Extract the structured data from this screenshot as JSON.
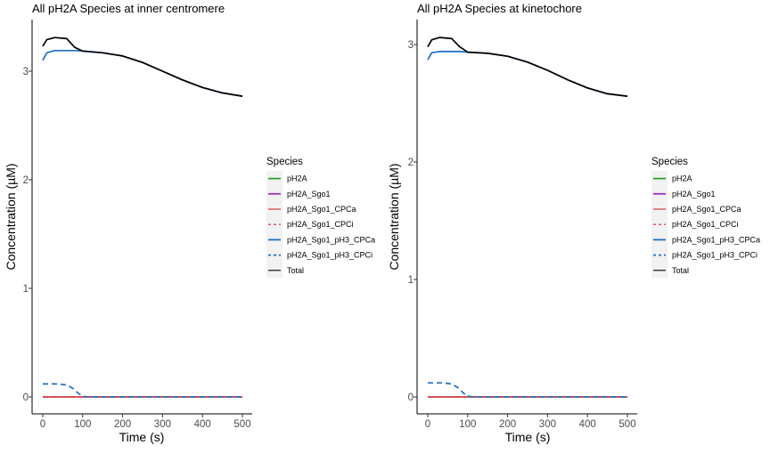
{
  "chart_data": [
    {
      "type": "line",
      "title": "All pH2A Species at inner centromere",
      "xlabel": "Time (s)",
      "ylabel": "Concentration (µM)",
      "xlim": [
        0,
        500
      ],
      "ylim": [
        0,
        3.3
      ],
      "x_ticks": [
        "0",
        "100",
        "200",
        "300",
        "400",
        "500"
      ],
      "y_ticks": [
        "0",
        "1",
        "2",
        "3"
      ],
      "legend_title": "Species",
      "legend_position": "right",
      "grid": false,
      "series": [
        {
          "name": "pH2A",
          "color": "#2ca02c",
          "dash": "solid",
          "x": [
            0,
            100,
            500
          ],
          "values": [
            0,
            0,
            0
          ]
        },
        {
          "name": "pH2A_Sgo1",
          "color": "#9b30b8",
          "dash": "solid",
          "x": [
            0,
            100,
            500
          ],
          "values": [
            0,
            0,
            0
          ]
        },
        {
          "name": "pH2A_Sgo1_CPCa",
          "color": "#d62728",
          "dash": "solid",
          "x": [
            0,
            100,
            500
          ],
          "values": [
            0,
            0,
            0
          ]
        },
        {
          "name": "pH2A_Sgo1_CPCi",
          "color": "#d62728",
          "dash": "dashed",
          "x": [
            0,
            100,
            500
          ],
          "values": [
            0,
            0,
            0
          ]
        },
        {
          "name": "pH2A_Sgo1_pH3_CPCa",
          "color": "#1f6fc5",
          "dash": "solid",
          "x": [
            0,
            10,
            30,
            60,
            80,
            100,
            150,
            200,
            250,
            300,
            350,
            400,
            450,
            500
          ],
          "values": [
            3.1,
            3.17,
            3.19,
            3.19,
            3.19,
            3.185,
            3.17,
            3.14,
            3.08,
            3.0,
            2.92,
            2.85,
            2.8,
            2.77
          ]
        },
        {
          "name": "pH2A_Sgo1_pH3_CPCi",
          "color": "#1f6fc5",
          "dash": "dashed",
          "x": [
            0,
            40,
            60,
            75,
            90,
            100,
            110,
            500
          ],
          "values": [
            0.12,
            0.12,
            0.11,
            0.08,
            0.03,
            0.01,
            0.0,
            0.0
          ]
        },
        {
          "name": "Total",
          "color": "#000000",
          "dash": "solid",
          "x": [
            0,
            10,
            30,
            60,
            80,
            100,
            150,
            200,
            250,
            300,
            350,
            400,
            450,
            500
          ],
          "values": [
            3.23,
            3.29,
            3.31,
            3.3,
            3.22,
            3.185,
            3.17,
            3.14,
            3.08,
            3.0,
            2.92,
            2.85,
            2.8,
            2.77
          ]
        }
      ]
    },
    {
      "type": "line",
      "title": "All pH2A Species at kinetochore",
      "xlabel": "Time (s)",
      "ylabel": "Concentration (µM)",
      "xlim": [
        0,
        500
      ],
      "ylim": [
        0,
        3.05
      ],
      "x_ticks": [
        "0",
        "100",
        "200",
        "300",
        "400",
        "500"
      ],
      "y_ticks": [
        "0",
        "1",
        "2",
        "3"
      ],
      "legend_title": "Species",
      "legend_position": "right",
      "grid": false,
      "series": [
        {
          "name": "pH2A",
          "color": "#2ca02c",
          "dash": "solid",
          "x": [
            0,
            100,
            500
          ],
          "values": [
            0,
            0,
            0
          ]
        },
        {
          "name": "pH2A_Sgo1",
          "color": "#9b30b8",
          "dash": "solid",
          "x": [
            0,
            100,
            500
          ],
          "values": [
            0,
            0,
            0
          ]
        },
        {
          "name": "pH2A_Sgo1_CPCa",
          "color": "#d62728",
          "dash": "solid",
          "x": [
            0,
            100,
            500
          ],
          "values": [
            0,
            0,
            0
          ]
        },
        {
          "name": "pH2A_Sgo1_CPCi",
          "color": "#d62728",
          "dash": "dashed",
          "x": [
            0,
            100,
            500
          ],
          "values": [
            0,
            0,
            0
          ]
        },
        {
          "name": "pH2A_Sgo1_pH3_CPCa",
          "color": "#1f6fc5",
          "dash": "solid",
          "x": [
            0,
            10,
            30,
            60,
            80,
            100,
            150,
            200,
            250,
            300,
            350,
            400,
            450,
            500
          ],
          "values": [
            2.87,
            2.93,
            2.94,
            2.94,
            2.94,
            2.935,
            2.925,
            2.9,
            2.85,
            2.78,
            2.7,
            2.63,
            2.58,
            2.56
          ]
        },
        {
          "name": "pH2A_Sgo1_pH3_CPCi",
          "color": "#1f6fc5",
          "dash": "dashed",
          "x": [
            0,
            40,
            60,
            75,
            90,
            100,
            110,
            500
          ],
          "values": [
            0.12,
            0.12,
            0.11,
            0.08,
            0.03,
            0.01,
            0.0,
            0.0
          ]
        },
        {
          "name": "Total",
          "color": "#000000",
          "dash": "solid",
          "x": [
            0,
            10,
            30,
            60,
            80,
            100,
            150,
            200,
            250,
            300,
            350,
            400,
            450,
            500
          ],
          "values": [
            2.98,
            3.04,
            3.06,
            3.05,
            2.98,
            2.935,
            2.925,
            2.9,
            2.85,
            2.78,
            2.7,
            2.63,
            2.58,
            2.56
          ]
        }
      ]
    }
  ]
}
